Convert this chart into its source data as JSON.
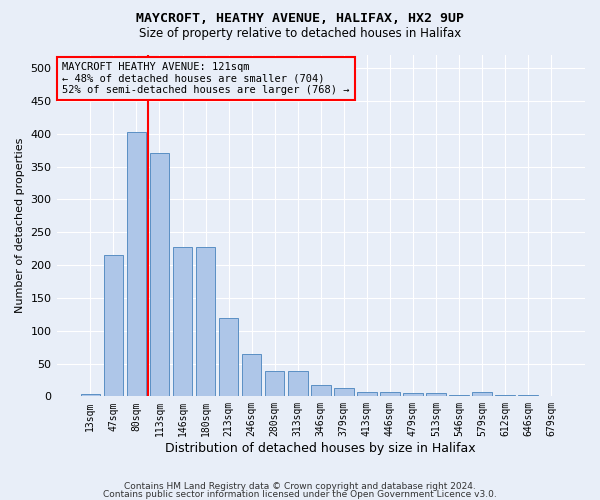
{
  "title1": "MAYCROFT, HEATHY AVENUE, HALIFAX, HX2 9UP",
  "title2": "Size of property relative to detached houses in Halifax",
  "xlabel": "Distribution of detached houses by size in Halifax",
  "ylabel": "Number of detached properties",
  "categories": [
    "13sqm",
    "47sqm",
    "80sqm",
    "113sqm",
    "146sqm",
    "180sqm",
    "213sqm",
    "246sqm",
    "280sqm",
    "313sqm",
    "346sqm",
    "379sqm",
    "413sqm",
    "446sqm",
    "479sqm",
    "513sqm",
    "546sqm",
    "579sqm",
    "612sqm",
    "646sqm",
    "679sqm"
  ],
  "values": [
    3,
    215,
    403,
    370,
    228,
    228,
    119,
    65,
    38,
    38,
    17,
    12,
    7,
    7,
    5,
    5,
    2,
    7,
    2,
    2,
    1
  ],
  "bar_color": "#aec6e8",
  "bar_edge_color": "#5a8fc4",
  "red_line_index": 2.5,
  "annotation_text": "MAYCROFT HEATHY AVENUE: 121sqm\n← 48% of detached houses are smaller (704)\n52% of semi-detached houses are larger (768) →",
  "ylim": [
    0,
    520
  ],
  "yticks": [
    0,
    50,
    100,
    150,
    200,
    250,
    300,
    350,
    400,
    450,
    500
  ],
  "footer1": "Contains HM Land Registry data © Crown copyright and database right 2024.",
  "footer2": "Contains public sector information licensed under the Open Government Licence v3.0.",
  "bg_color": "#e8eef8"
}
